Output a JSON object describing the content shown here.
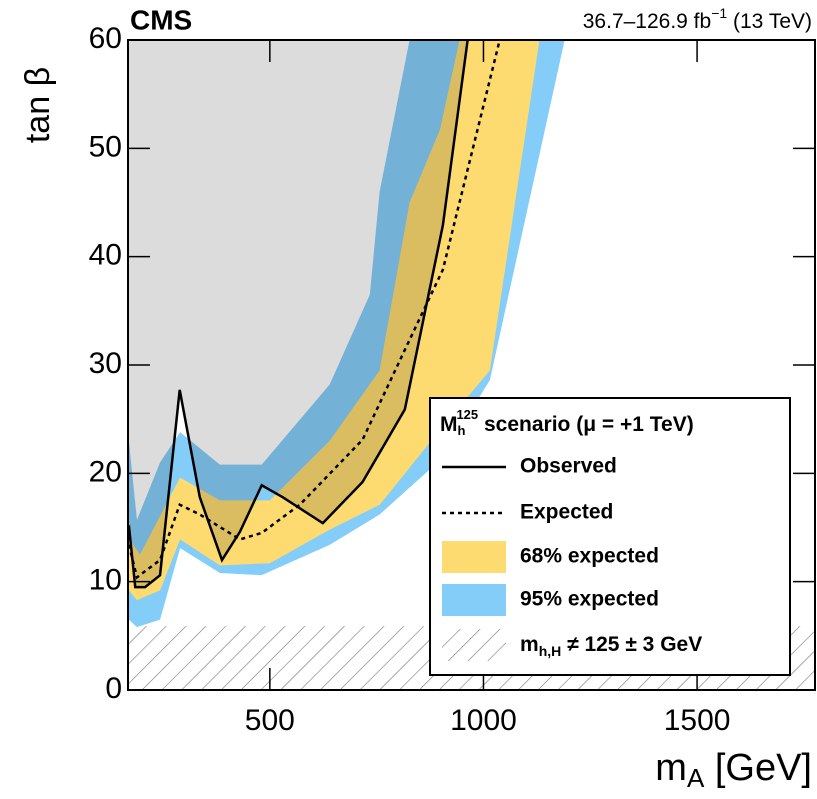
{
  "chart_data": {
    "type": "line",
    "experiment": "CMS",
    "luminosity_parts": [
      "36.7–126.9 fb",
      "−1",
      " (13 TeV)"
    ],
    "x_label_parts": [
      "m",
      "A",
      " [GeV]"
    ],
    "y_label": "tan β",
    "xlim": [
      168,
      1776
    ],
    "xticks": [
      500,
      1000,
      1500
    ],
    "ylim": [
      0,
      60
    ],
    "yticks": [
      0,
      10,
      20,
      30,
      40,
      50,
      60
    ],
    "legend": {
      "corner": "lower right",
      "title_parts": [
        "M",
        "h",
        "125",
        " scenario (μ = +1 TeV)"
      ]
    },
    "excluded_color": "#dcdcdc",
    "series": [
      {
        "name": "Observed",
        "color": "#000000",
        "dash": "solid",
        "x": [
          170,
          185,
          208,
          243,
          289,
          336,
          388,
          430,
          481,
          530,
          624,
          717,
          816,
          905,
          963
        ],
        "values": [
          15.2,
          9.5,
          9.5,
          10.6,
          27.7,
          17.8,
          12,
          14.6,
          18.9,
          17.8,
          15.4,
          19.2,
          25.9,
          42.9,
          60
        ]
      },
      {
        "name": "Expected",
        "color": "#000000",
        "dash": "dotted",
        "x": [
          170,
          189,
          243,
          289,
          336,
          430,
          481,
          570,
          717,
          816,
          905,
          1038
        ],
        "values": [
          13.4,
          10.4,
          12,
          17.1,
          16.2,
          13.9,
          14.5,
          17.1,
          23.1,
          31.4,
          38.8,
          60
        ]
      }
    ],
    "bands": [
      {
        "name": "95% expected",
        "color": "#85cdf9",
        "upper": {
          "x": [
            170,
            189,
            243,
            290,
            383,
            481,
            640,
            734,
            757,
            827
          ],
          "values": [
            23,
            15.7,
            21,
            23.8,
            20.8,
            20.8,
            28.2,
            36.5,
            46,
            60
          ]
        },
        "lower": {
          "x": [
            170,
            189,
            243,
            290,
            383,
            481,
            640,
            757,
            898,
            1015,
            1190
          ],
          "values": [
            6.5,
            5.8,
            6.5,
            13.1,
            10.8,
            10.6,
            13.4,
            16.2,
            21.2,
            28.6,
            60
          ]
        }
      },
      {
        "name": "68% expected",
        "color": "#fedb70",
        "upper": {
          "x": [
            170,
            196,
            290,
            383,
            500,
            640,
            757,
            827,
            898,
            944
          ],
          "values": [
            14,
            12.5,
            19.6,
            17.5,
            17.5,
            23,
            29.5,
            45,
            51.7,
            60
          ]
        },
        "lower": {
          "x": [
            170,
            189,
            243,
            290,
            383,
            500,
            640,
            757,
            898,
            1015,
            1131
          ],
          "values": [
            9.2,
            8.3,
            9.2,
            13.9,
            11.5,
            11.7,
            14.8,
            17.1,
            24,
            29.5,
            60
          ]
        }
      }
    ],
    "hatched": {
      "name_parts": [
        "m",
        "h,H",
        " ≠ 125 ± 3 GeV"
      ],
      "max": 5.9
    }
  }
}
